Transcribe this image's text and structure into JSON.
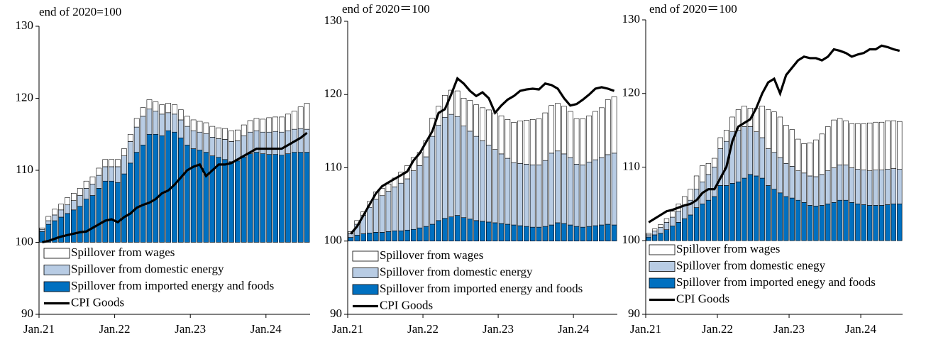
{
  "chart_data": [
    {
      "type": "bar",
      "title": "end of 2020=100",
      "base": 100,
      "categories": [
        "Jan.21",
        null,
        null,
        null,
        null,
        null,
        null,
        null,
        null,
        null,
        null,
        null,
        "Jan.22",
        null,
        null,
        null,
        null,
        null,
        null,
        null,
        null,
        null,
        null,
        null,
        "Jan.23",
        null,
        null,
        null,
        null,
        null,
        null,
        null,
        null,
        null,
        null,
        null,
        "Jan.24",
        null,
        null,
        null,
        null,
        null,
        null
      ],
      "ylim": [
        90,
        130
      ],
      "yticks": [
        90,
        100,
        110,
        120,
        130
      ],
      "series": [
        {
          "name": "Spillover from wages",
          "color": "#ffffff",
          "values": [
            0.2,
            0.6,
            0.8,
            0.8,
            1,
            1,
            1,
            1,
            1,
            1,
            1,
            1,
            1,
            1,
            1,
            1.2,
            1.2,
            1.3,
            1.3,
            1.3,
            1.3,
            1.3,
            1.4,
            1.4,
            1.5,
            1.5,
            1.5,
            1.5,
            1.5,
            1.5,
            1.5,
            1.5,
            1.5,
            1.6,
            1.7,
            1.8,
            2,
            2,
            2.1,
            2.3,
            2.5,
            3,
            3.6
          ]
        },
        {
          "name": "Spillover from domestic energy",
          "color": "#b8cce4",
          "values": [
            0.3,
            0.5,
            0.8,
            1,
            1.2,
            1.3,
            1.5,
            1.5,
            1.6,
            1.8,
            2,
            2,
            2.2,
            2.5,
            3,
            3.5,
            4,
            3.5,
            3.2,
            3,
            2.5,
            2.5,
            2.5,
            2.6,
            2.5,
            2.5,
            2.6,
            2.6,
            2.6,
            2.8,
            2.8,
            2.8,
            3,
            3,
            3,
            3,
            3.1,
            3.2,
            3.2,
            3.2,
            3.2,
            3.3,
            3.2
          ]
        },
        {
          "name": "Spillover from imported energy and foods",
          "color": "#0070c0",
          "values": [
            1.5,
            2.5,
            3,
            3.5,
            4,
            4.5,
            5,
            6,
            6.5,
            7.5,
            8.5,
            8.5,
            8.3,
            9.5,
            11,
            12.5,
            13.5,
            15,
            15,
            14.8,
            15.5,
            15.3,
            14.5,
            13.5,
            13,
            12.8,
            12.5,
            12,
            11.8,
            11.5,
            11.2,
            11.3,
            11.8,
            12.3,
            12.5,
            12.3,
            12.2,
            12.2,
            12.1,
            12.3,
            12.5,
            12.5,
            12.5
          ]
        },
        {
          "name": "CPI Goods",
          "type": "line",
          "color": "#000000",
          "values": [
            100,
            100.2,
            100.5,
            100.8,
            101,
            101.2,
            101.4,
            101.5,
            102,
            102.5,
            103,
            103.2,
            102.8,
            103.5,
            104,
            104.8,
            105.2,
            105.5,
            106,
            106.8,
            107.2,
            108,
            109,
            110,
            110.5,
            110.8,
            109.2,
            110,
            110.8,
            110.8,
            111,
            111.5,
            112,
            112.5,
            113,
            113,
            113,
            113,
            113,
            113.5,
            114,
            114.5,
            115.2
          ]
        }
      ]
    },
    {
      "type": "bar",
      "title": "end of 2020＝100",
      "base": 100,
      "categories": [
        "Jan.21",
        null,
        null,
        null,
        null,
        null,
        null,
        null,
        null,
        null,
        null,
        null,
        "Jan.22",
        null,
        null,
        null,
        null,
        null,
        null,
        null,
        null,
        null,
        null,
        null,
        "Jan.23",
        null,
        null,
        null,
        null,
        null,
        null,
        null,
        null,
        null,
        null,
        null,
        "Jan.24",
        null,
        null,
        null,
        null,
        null,
        null
      ],
      "ylim": [
        90,
        130
      ],
      "yticks": [
        90,
        100,
        110,
        120,
        130
      ],
      "series": [
        {
          "name": "Spillover from wages",
          "color": "#ffffff",
          "values": [
            0.3,
            0.5,
            0.5,
            0.8,
            1,
            1,
            1,
            1.2,
            1.5,
            1.8,
            1.8,
            1.8,
            2.2,
            2.5,
            2.6,
            3,
            3.3,
            3.5,
            3.8,
            4.2,
            4.3,
            4.5,
            4.8,
            5,
            5.2,
            5.3,
            5.5,
            5.8,
            6,
            6.2,
            6.3,
            6.5,
            6.5,
            6.5,
            6.5,
            6.3,
            6.2,
            6.3,
            6.3,
            6.6,
            6.8,
            7.5,
            7.7
          ]
        },
        {
          "name": "Spillover from domestic energy",
          "color": "#b8cce4",
          "values": [
            0.5,
            1.5,
            2.5,
            3.5,
            4.5,
            5,
            5.5,
            6,
            6.5,
            7,
            8,
            8.5,
            9.5,
            12,
            13,
            13.8,
            14,
            13.5,
            12.5,
            12,
            11.5,
            11,
            10.5,
            10,
            9.5,
            9,
            8.5,
            8.5,
            8.5,
            8.5,
            8.5,
            9,
            9.8,
            9.8,
            9.5,
            9.2,
            8.5,
            8.5,
            8.8,
            9,
            9.2,
            9.5,
            9.8
          ]
        },
        {
          "name": "Spillover from imported energy and foods",
          "color": "#0070c0",
          "values": [
            0.5,
            0.8,
            1,
            1.1,
            1.2,
            1.2,
            1.3,
            1.4,
            1.4,
            1.5,
            1.6,
            1.8,
            2,
            2.3,
            2.8,
            3.1,
            3.3,
            3.5,
            3.2,
            3,
            2.8,
            2.7,
            2.6,
            2.5,
            2.4,
            2.3,
            2.2,
            2.1,
            2,
            1.9,
            1.9,
            2,
            2.2,
            2.5,
            2.4,
            2.2,
            2,
            1.9,
            2,
            2.1,
            2.2,
            2.3,
            2.2
          ]
        },
        {
          "name": "CPI Goods",
          "type": "line",
          "color": "#000000",
          "values": [
            101,
            102,
            103.5,
            105,
            106.5,
            107.5,
            108,
            108.5,
            109,
            109.5,
            111,
            112,
            113.5,
            115,
            117.5,
            118,
            120,
            122.2,
            121.5,
            120.5,
            119.8,
            120.3,
            119.5,
            117.5,
            118.5,
            119.3,
            119.8,
            120.5,
            120.7,
            120.8,
            120.7,
            121.5,
            121.3,
            120.8,
            119.5,
            118.5,
            118.7,
            119.3,
            120,
            120.8,
            121,
            120.8,
            120.5
          ]
        }
      ]
    },
    {
      "type": "bar",
      "title": "end of 2020＝100",
      "base": 100,
      "categories": [
        "Jan.21",
        null,
        null,
        null,
        null,
        null,
        null,
        null,
        null,
        null,
        null,
        null,
        "Jan.22",
        null,
        null,
        null,
        null,
        null,
        null,
        null,
        null,
        null,
        null,
        null,
        "Jan.23",
        null,
        null,
        null,
        null,
        null,
        null,
        null,
        null,
        null,
        null,
        null,
        "Jan.24",
        null,
        null,
        null,
        null,
        null,
        null
      ],
      "ylim": [
        90,
        130
      ],
      "yticks": [
        90,
        100,
        110,
        120,
        130
      ],
      "series": [
        {
          "name": "Spillover from wages",
          "color": "#ffffff",
          "values": [
            0.2,
            0.3,
            0.4,
            0.5,
            0.8,
            1,
            1.2,
            1.5,
            1.8,
            2.2,
            1.5,
            1.2,
            1.5,
            1.5,
            2,
            2.8,
            2.8,
            2.5,
            3.2,
            4.3,
            5.3,
            5.5,
            5.5,
            5.2,
            5,
            4.3,
            4,
            4.5,
            5,
            5.5,
            6,
            6.5,
            6.3,
            6,
            6,
            6.2,
            6.3,
            6.5,
            6.5,
            6.5,
            6.6,
            6.5,
            6.5
          ]
        },
        {
          "name": "Spillover from domestic enegy",
          "color": "#b8cce4",
          "values": [
            0.3,
            0.5,
            0.8,
            1,
            1.2,
            1.5,
            1.8,
            2,
            2.5,
            3,
            3.5,
            4,
            5,
            6,
            7,
            7,
            7,
            6.5,
            6,
            5.5,
            5,
            5,
            4.8,
            4.5,
            4.3,
            4,
            4,
            4,
            4,
            4.2,
            4.5,
            4.7,
            4.8,
            4.8,
            4.7,
            4.7,
            4.7,
            4.7,
            4.8,
            4.8,
            4.8,
            4.8,
            4.7
          ]
        },
        {
          "name": "Spillover from imported enegy and foods",
          "color": "#0070c0",
          "values": [
            0.5,
            0.8,
            1,
            1.5,
            2,
            2.5,
            3,
            3.5,
            4.5,
            5,
            5.5,
            6,
            7.5,
            7.5,
            7.8,
            8,
            8.5,
            9,
            8.8,
            8.5,
            7.5,
            7,
            6.5,
            6,
            5.8,
            5.5,
            5.2,
            4.8,
            4.7,
            4.8,
            5,
            5.2,
            5.5,
            5.5,
            5.2,
            5,
            4.9,
            4.8,
            4.8,
            4.8,
            4.9,
            5,
            5
          ]
        },
        {
          "name": "CPI Goods",
          "type": "line",
          "color": "#000000",
          "values": [
            102.5,
            103,
            103.5,
            104,
            104.2,
            104.5,
            104.8,
            105,
            105.5,
            106.5,
            107,
            107,
            108.5,
            110,
            113.5,
            115.5,
            116,
            116.5,
            118,
            120,
            121.5,
            122,
            120,
            122.5,
            123.5,
            124.5,
            125,
            124.8,
            124.8,
            124.5,
            125,
            126,
            125.8,
            125.5,
            125,
            125.3,
            125.5,
            126,
            126,
            126.5,
            126.3,
            126,
            125.8
          ]
        }
      ]
    }
  ]
}
